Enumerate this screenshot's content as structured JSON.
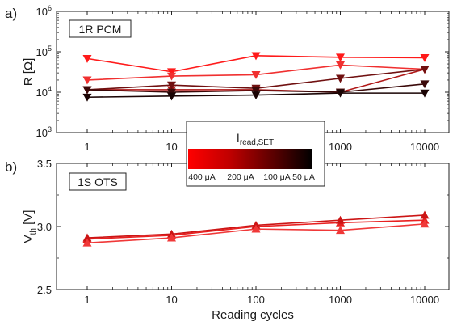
{
  "figure": {
    "xlabel": "Reading cycles",
    "xticks": [
      1,
      10,
      100,
      1000,
      10000
    ],
    "xtick_labels": [
      "1",
      "10",
      "100",
      "1000",
      "10000"
    ],
    "legend": {
      "title_main": "I",
      "title_sub": "read,SET",
      "labels": [
        "400 μA",
        "200 μA",
        "100 μA",
        "50 μA"
      ],
      "gradient": [
        "#ff0000",
        "#c00000",
        "#600000",
        "#000000"
      ]
    }
  },
  "chart_data": [
    {
      "type": "line",
      "panel_label": "a)",
      "annotation": "1R PCM",
      "ylabel": "R [Ω]",
      "yscale": "log",
      "xscale": "log",
      "ylim": [
        1000,
        1000000
      ],
      "yticks": [
        {
          "value": 1000,
          "base": "10",
          "exp": "3"
        },
        {
          "value": 10000,
          "base": "10",
          "exp": "4"
        },
        {
          "value": 100000,
          "base": "10",
          "exp": "5"
        },
        {
          "value": 1000000,
          "base": "10",
          "exp": "6"
        }
      ],
      "marker": "triangle-down",
      "x": [
        1,
        10,
        100,
        1000,
        10000
      ],
      "series": [
        {
          "color": "#ff1a1a",
          "values": [
            68000,
            32000,
            80000,
            73000,
            71000
          ]
        },
        {
          "color": "#f03030",
          "values": [
            20000,
            25000,
            27000,
            47000,
            37000
          ]
        },
        {
          "color": "#b01818",
          "values": [
            11500,
            11500,
            11500,
            10000,
            37000
          ]
        },
        {
          "color": "#701010",
          "values": [
            11500,
            15000,
            12500,
            22000,
            37000
          ]
        },
        {
          "color": "#3a0808",
          "values": [
            11500,
            10000,
            11000,
            10000,
            16000
          ]
        },
        {
          "color": "#1a0404",
          "values": [
            7500,
            8000,
            8500,
            9500,
            9500
          ]
        }
      ]
    },
    {
      "type": "line",
      "panel_label": "b)",
      "annotation": "1S OTS",
      "ylabel_main": "V",
      "ylabel_sub": "th",
      "ylabel_unit": " [V]",
      "xscale": "log",
      "ylim": [
        2.5,
        3.5
      ],
      "yticks": [
        2.5,
        3.0,
        3.5
      ],
      "ytick_labels": [
        "2.5",
        "3.0",
        "3.5"
      ],
      "marker": "triangle-up",
      "x": [
        1,
        10,
        100,
        1000,
        10000
      ],
      "series": [
        {
          "color": "#e82020",
          "values": [
            2.9,
            2.93,
            3.0,
            3.03,
            3.05
          ]
        },
        {
          "color": "#cc1515",
          "values": [
            2.91,
            2.94,
            3.01,
            3.05,
            3.09
          ]
        },
        {
          "color": "#f03838",
          "values": [
            2.87,
            2.91,
            2.98,
            2.97,
            3.02
          ]
        }
      ]
    }
  ]
}
